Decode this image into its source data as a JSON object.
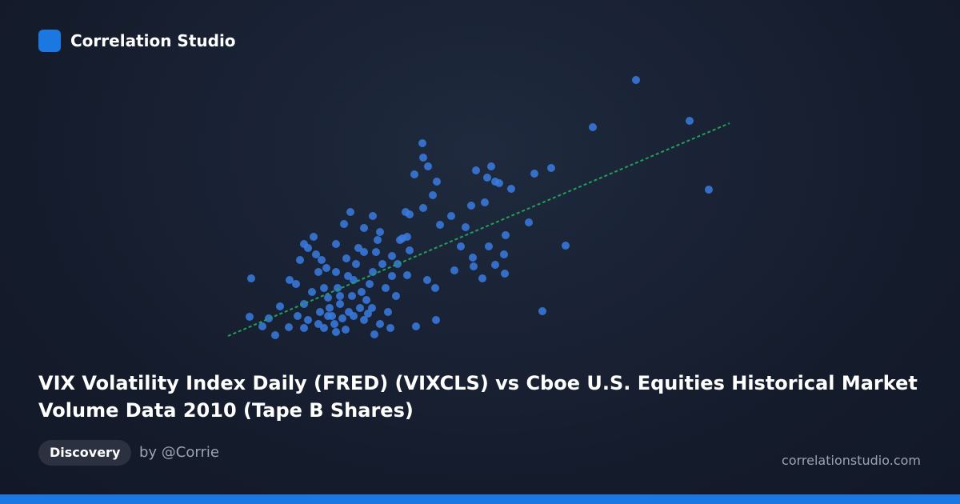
{
  "brand": "Correlation Studio",
  "chart_data": {
    "type": "scatter",
    "title": "VIX Volatility Index Daily (FRED) (VIXCLS) vs Cboe U.S. Equities Historical Market Volume Data 2010 (Tape B Shares)",
    "color": "#3a7be0",
    "x": [
      795,
      741,
      862,
      886,
      707,
      678,
      689,
      668,
      639,
      614,
      595,
      609,
      619,
      624,
      606,
      589,
      632,
      630,
      619,
      631,
      603,
      592,
      591,
      611,
      576,
      582,
      564,
      550,
      546,
      541,
      535,
      529,
      528,
      518,
      529,
      512,
      507,
      509,
      512,
      500,
      503,
      509,
      534,
      544,
      545,
      520,
      568,
      661,
      314,
      312,
      328,
      336,
      344,
      350,
      361,
      362,
      370,
      375,
      380,
      385,
      392,
      395,
      398,
      402,
      405,
      410,
      412,
      415,
      418,
      420,
      425,
      428,
      432,
      436,
      440,
      442,
      445,
      448,
      450,
      455,
      458,
      462,
      466,
      470,
      472,
      475,
      478,
      482,
      485,
      488,
      468,
      430,
      438,
      466,
      455,
      420,
      408,
      390,
      380,
      372,
      398,
      405,
      422,
      435,
      452,
      460,
      475,
      490,
      495,
      465,
      442,
      400,
      385,
      420,
      433,
      455,
      490,
      497,
      380,
      410,
      425
    ],
    "y": [
      530,
      471,
      479,
      393,
      323,
      241,
      420,
      413,
      394,
      422,
      417,
      408,
      403,
      401,
      377,
      373,
      336,
      312,
      299,
      288,
      282,
      297,
      308,
      322,
      322,
      346,
      360,
      349,
      403,
      386,
      422,
      433,
      451,
      412,
      370,
      362,
      365,
      334,
      317,
      330,
      332,
      286,
      280,
      270,
      230,
      222,
      292,
      352,
      282,
      234,
      222,
      232,
      211,
      247,
      221,
      280,
      275,
      305,
      325,
      320,
      334,
      312,
      290,
      305,
      270,
      258,
      245,
      235,
      225,
      215,
      250,
      232,
      218,
      240,
      260,
      280,
      300,
      320,
      245,
      230,
      255,
      275,
      290,
      315,
      330,
      340,
      300,
      270,
      240,
      220,
      212,
      350,
      365,
      360,
      345,
      325,
      295,
      265,
      250,
      235,
      225,
      220,
      270,
      285,
      265,
      238,
      225,
      285,
      260,
      245,
      235,
      240,
      230,
      290,
      307,
      315,
      310,
      300,
      220,
      235,
      260
    ],
    "xlim": [
      280,
      920
    ],
    "ylim": [
      200,
      540
    ],
    "trendline": {
      "x": [
        285,
        912
      ],
      "y": [
        210,
        476
      ],
      "color": "#22a05a"
    }
  },
  "tag": "Discovery",
  "author": "by @Corrie",
  "site": "correlationstudio.com"
}
